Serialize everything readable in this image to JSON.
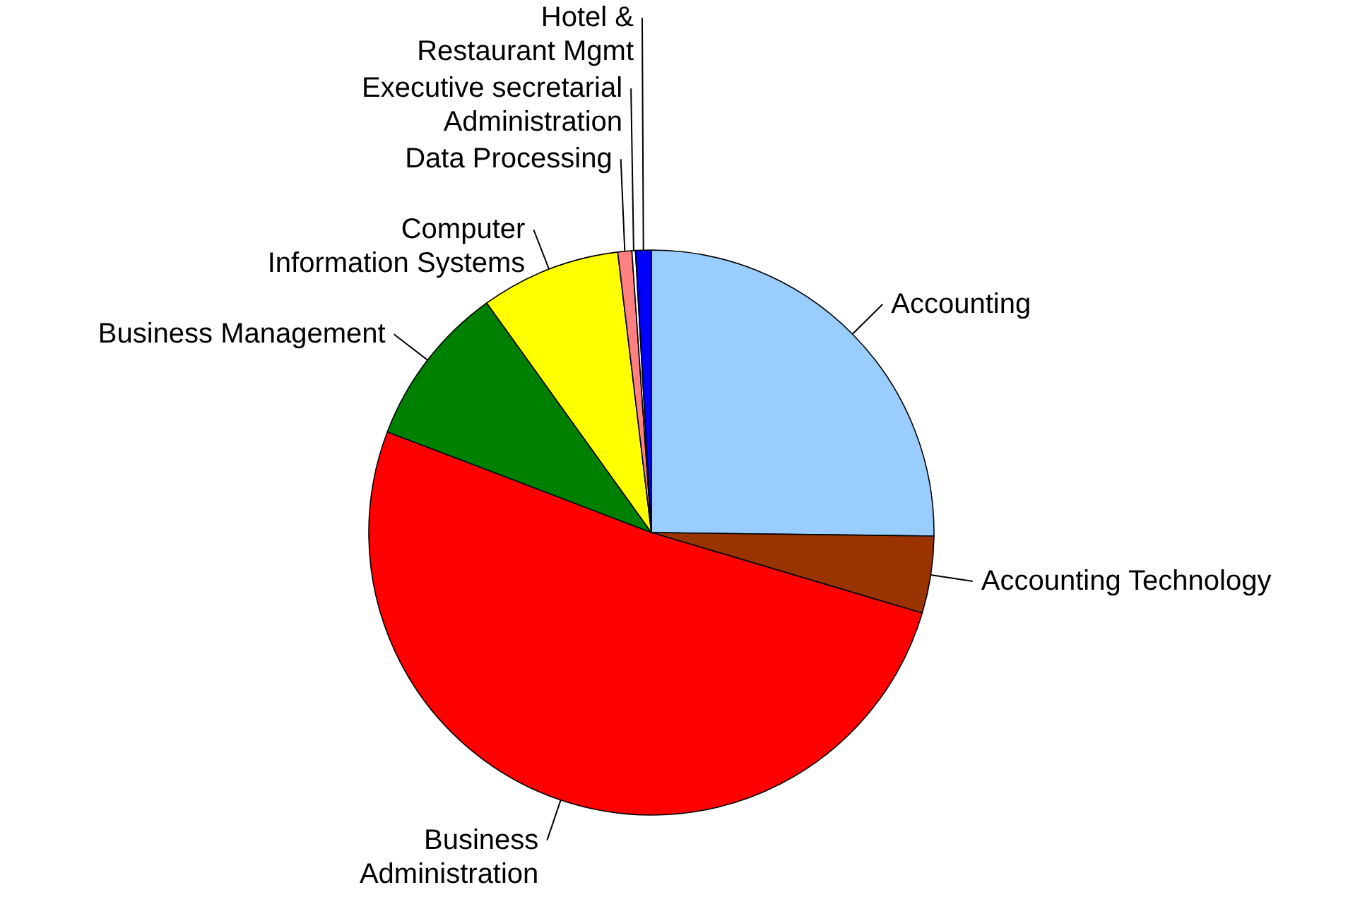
{
  "chart_data": {
    "type": "pie",
    "categories": [
      "Accounting",
      "Accounting Technology",
      "Business Administration",
      "Business Management",
      "Computer Information Systems",
      "Data Processing",
      "Executive secretarial Administration",
      "Hotel & Restaurant Mgmt"
    ],
    "values": [
      25.2,
      4.4,
      51.2,
      9.3,
      8.0,
      0.8,
      0.2,
      0.9
    ],
    "colors": [
      "#99ccff",
      "#993300",
      "#ff0000",
      "#008000",
      "#ffff00",
      "#ff8080",
      "#ffffff",
      "#0000ff"
    ]
  }
}
